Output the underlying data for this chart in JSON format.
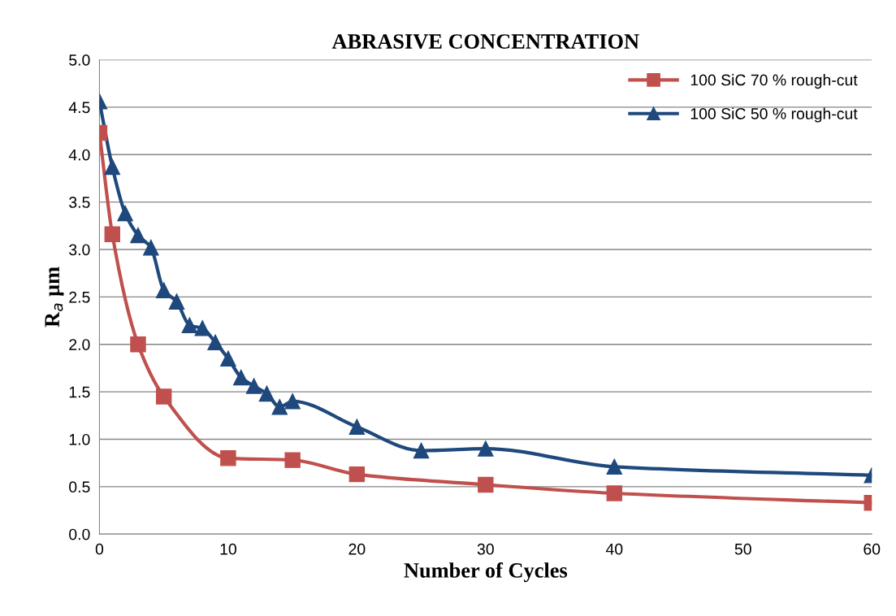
{
  "chart_data": {
    "type": "line",
    "title": "ABRASIVE CONCENTRATION",
    "xlabel": "Number of Cycles",
    "ylabel": "R$_{a}$ µm",
    "xlim": [
      0,
      60
    ],
    "xticks": [
      0,
      10,
      20,
      30,
      40,
      50,
      60
    ],
    "ylim": [
      0,
      5
    ],
    "yticks": [
      {
        "value": 0,
        "label": "0.0"
      },
      {
        "value": 0.5,
        "label": "0.5"
      },
      {
        "value": 1,
        "label": "1.0"
      },
      {
        "value": 1.5,
        "label": "1.5"
      },
      {
        "value": 2,
        "label": "2.0"
      },
      {
        "value": 2.5,
        "label": "2.5"
      },
      {
        "value": 3,
        "label": "3.0"
      },
      {
        "value": 3.5,
        "label": "3.5"
      },
      {
        "value": 4,
        "label": "4.0"
      },
      {
        "value": 4.5,
        "label": "4.5"
      },
      {
        "value": 5,
        "label": "5.0"
      }
    ],
    "grid": "y",
    "legend": "top right",
    "line_style": "solid",
    "series": [
      {
        "name": "100 SiC 70 % rough-cut",
        "color": "#c0504d",
        "marker": "square",
        "x": [
          0,
          1,
          3,
          5,
          10,
          15,
          20,
          30,
          40,
          60
        ],
        "values": [
          4.23,
          3.16,
          2.0,
          1.45,
          0.8,
          0.78,
          0.63,
          0.52,
          0.43,
          0.33
        ]
      },
      {
        "name": "100 SiC 50 % rough-cut",
        "color": "#1f497d",
        "marker": "triangle",
        "x": [
          0,
          1,
          2,
          3,
          4,
          5,
          6,
          7,
          8,
          9,
          10,
          11,
          12,
          13,
          14,
          15,
          20,
          25,
          30,
          40,
          60
        ],
        "values": [
          4.56,
          3.87,
          3.38,
          3.15,
          3.02,
          2.57,
          2.45,
          2.2,
          2.17,
          2.02,
          1.85,
          1.65,
          1.56,
          1.48,
          1.34,
          1.4,
          1.13,
          0.88,
          0.9,
          0.71,
          0.62
        ]
      }
    ]
  }
}
